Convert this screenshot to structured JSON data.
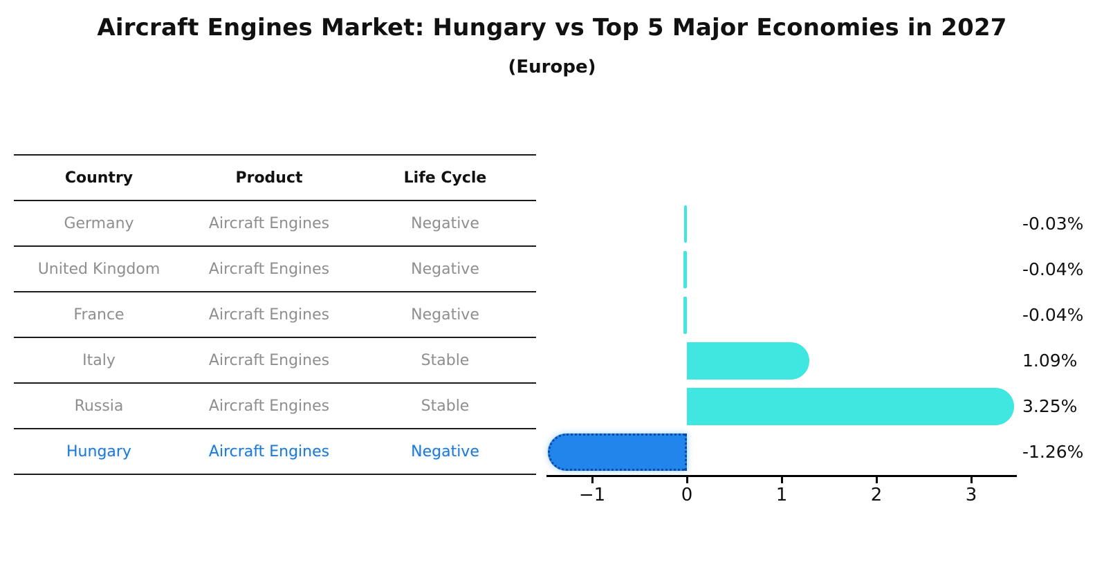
{
  "title": "Aircraft Engines Market: Hungary vs Top 5 Major Economies in 2027",
  "subtitle": "(Europe)",
  "colors": {
    "bar_default": "#40e6e0",
    "bar_highlight": "#2185eb",
    "bar_highlight_border": "#0d47a1",
    "highlight_text": "#2478cc",
    "table_text": "#8e8e8e",
    "header_text": "#111111",
    "axis": "#000000"
  },
  "table": {
    "headers": [
      "Country",
      "Product",
      "Life Cycle"
    ],
    "rows": [
      {
        "country": "Germany",
        "product": "Aircraft Engines",
        "life_cycle": "Negative",
        "highlight": false
      },
      {
        "country": "United Kingdom",
        "product": "Aircraft Engines",
        "life_cycle": "Negative",
        "highlight": false
      },
      {
        "country": "France",
        "product": "Aircraft Engines",
        "life_cycle": "Negative",
        "highlight": false
      },
      {
        "country": "Italy",
        "product": "Aircraft Engines",
        "life_cycle": "Stable",
        "highlight": false
      },
      {
        "country": "Russia",
        "product": "Aircraft Engines",
        "life_cycle": "Stable",
        "highlight": false
      },
      {
        "country": "Hungary",
        "product": "Aircraft Engines",
        "life_cycle": "Negative",
        "highlight": true
      }
    ]
  },
  "chart_data": {
    "type": "bar",
    "orientation": "horizontal",
    "title": "Aircraft Engines Market: Hungary vs Top 5 Major Economies in 2027",
    "subtitle": "(Europe)",
    "categories": [
      "Germany",
      "United Kingdom",
      "France",
      "Italy",
      "Russia",
      "Hungary"
    ],
    "values": [
      -0.03,
      -0.04,
      -0.04,
      1.09,
      3.25,
      -1.26
    ],
    "value_labels": [
      "-0.03%",
      "-0.04%",
      "-0.04%",
      "1.09%",
      "3.25%",
      "-1.26%"
    ],
    "unit": "percent",
    "highlight_category": "Hungary",
    "xlim": [
      -1.5,
      3.5
    ],
    "xticks": [
      -1,
      0,
      1,
      2,
      3
    ],
    "xtick_labels": [
      "−1",
      "0",
      "1",
      "2",
      "3"
    ],
    "grid": false,
    "legend": false
  }
}
